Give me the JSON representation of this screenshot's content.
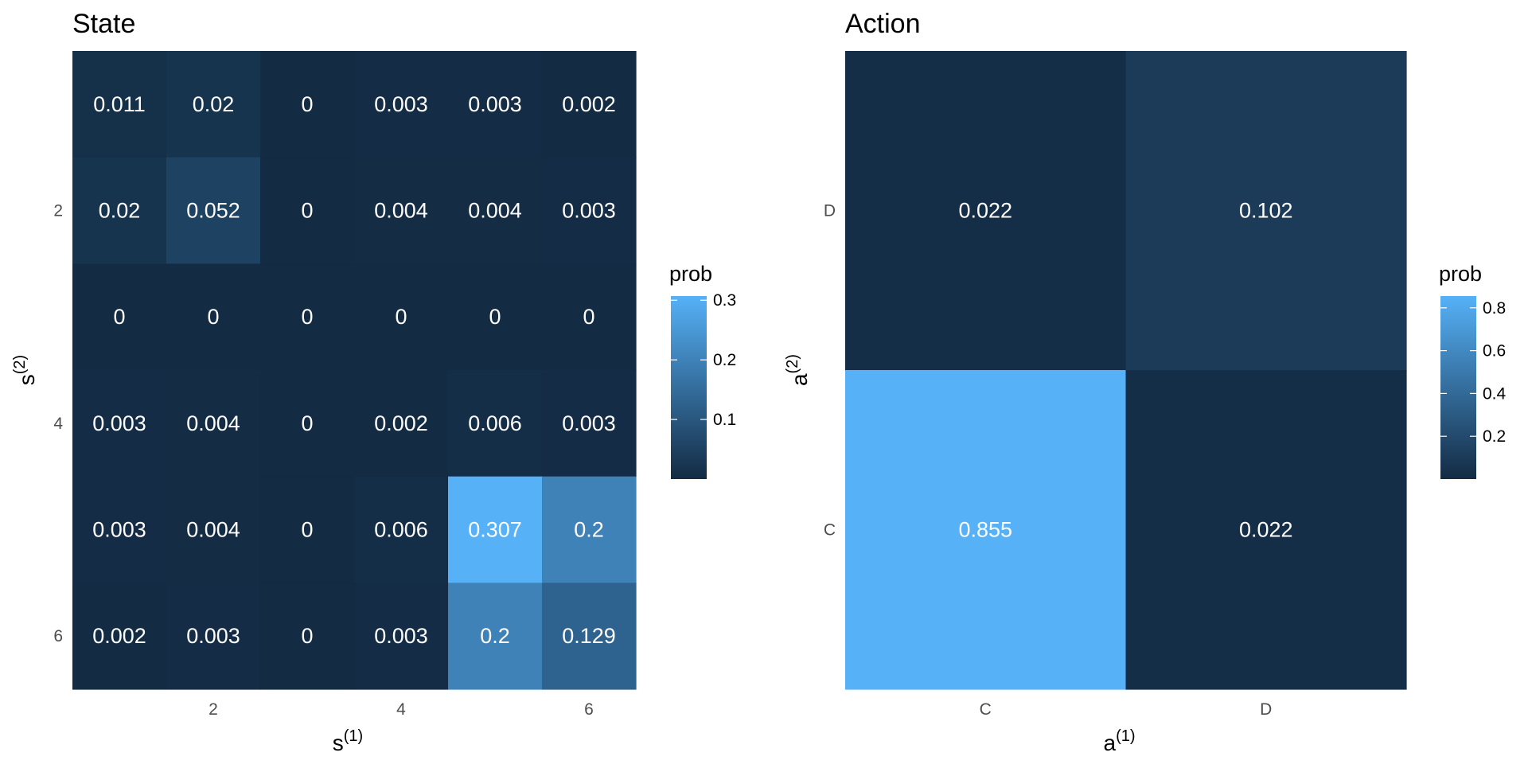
{
  "chart_data": [
    {
      "type": "heatmap",
      "title": "State",
      "xlabel": "s",
      "xlabel_sup": "(1)",
      "ylabel": "s",
      "ylabel_sup": "(2)",
      "x_categories": [
        "1",
        "2",
        "3",
        "4",
        "5",
        "6"
      ],
      "y_categories": [
        "1",
        "2",
        "3",
        "4",
        "5",
        "6"
      ],
      "x_tick_labels": [
        "",
        "2",
        "",
        "4",
        "",
        "6"
      ],
      "y_tick_labels": [
        "",
        "2",
        "",
        "4",
        "",
        "6"
      ],
      "y_order": "top-to-bottom",
      "values": [
        [
          0.011,
          0.02,
          0,
          0.003,
          0.003,
          0.002
        ],
        [
          0.02,
          0.052,
          0,
          0.004,
          0.004,
          0.003
        ],
        [
          0,
          0,
          0,
          0,
          0,
          0
        ],
        [
          0.003,
          0.004,
          0,
          0.002,
          0.006,
          0.003
        ],
        [
          0.003,
          0.004,
          0,
          0.006,
          0.307,
          0.2
        ],
        [
          0.002,
          0.003,
          0,
          0.003,
          0.2,
          0.129
        ]
      ],
      "labels": [
        [
          "0.011",
          "0.02",
          "0",
          "0.003",
          "0.003",
          "0.002"
        ],
        [
          "0.02",
          "0.052",
          "0",
          "0.004",
          "0.004",
          "0.003"
        ],
        [
          "0",
          "0",
          "0",
          "0",
          "0",
          "0"
        ],
        [
          "0.003",
          "0.004",
          "0",
          "0.002",
          "0.006",
          "0.003"
        ],
        [
          "0.003",
          "0.004",
          "0",
          "0.006",
          "0.307",
          "0.2"
        ],
        [
          "0.002",
          "0.003",
          "0",
          "0.003",
          "0.2",
          "0.129"
        ]
      ],
      "legend": {
        "title": "prob",
        "min": 0,
        "max": 0.307,
        "ticks": [
          0.1,
          0.2,
          0.3
        ],
        "tick_labels": [
          "0.1",
          "0.2",
          "0.3"
        ],
        "placement": "right"
      },
      "color_low": "#132B43",
      "color_high": "#56B1F7",
      "grid": false
    },
    {
      "type": "heatmap",
      "title": "Action",
      "xlabel": "a",
      "xlabel_sup": "(1)",
      "ylabel": "a",
      "ylabel_sup": "(2)",
      "x_categories": [
        "C",
        "D"
      ],
      "y_categories": [
        "D",
        "C"
      ],
      "x_tick_labels": [
        "C",
        "D"
      ],
      "y_tick_labels": [
        "D",
        "C"
      ],
      "y_order": "top-to-bottom",
      "values": [
        [
          0.022,
          0.102
        ],
        [
          0.855,
          0.022
        ]
      ],
      "labels": [
        [
          "0.022",
          "0.102"
        ],
        [
          "0.855",
          "0.022"
        ]
      ],
      "legend": {
        "title": "prob",
        "min": 0,
        "max": 0.855,
        "ticks": [
          0.2,
          0.4,
          0.6,
          0.8
        ],
        "tick_labels": [
          "0.2",
          "0.4",
          "0.6",
          "0.8"
        ],
        "placement": "right"
      },
      "color_low": "#132B43",
      "color_high": "#56B1F7",
      "grid": false
    }
  ]
}
